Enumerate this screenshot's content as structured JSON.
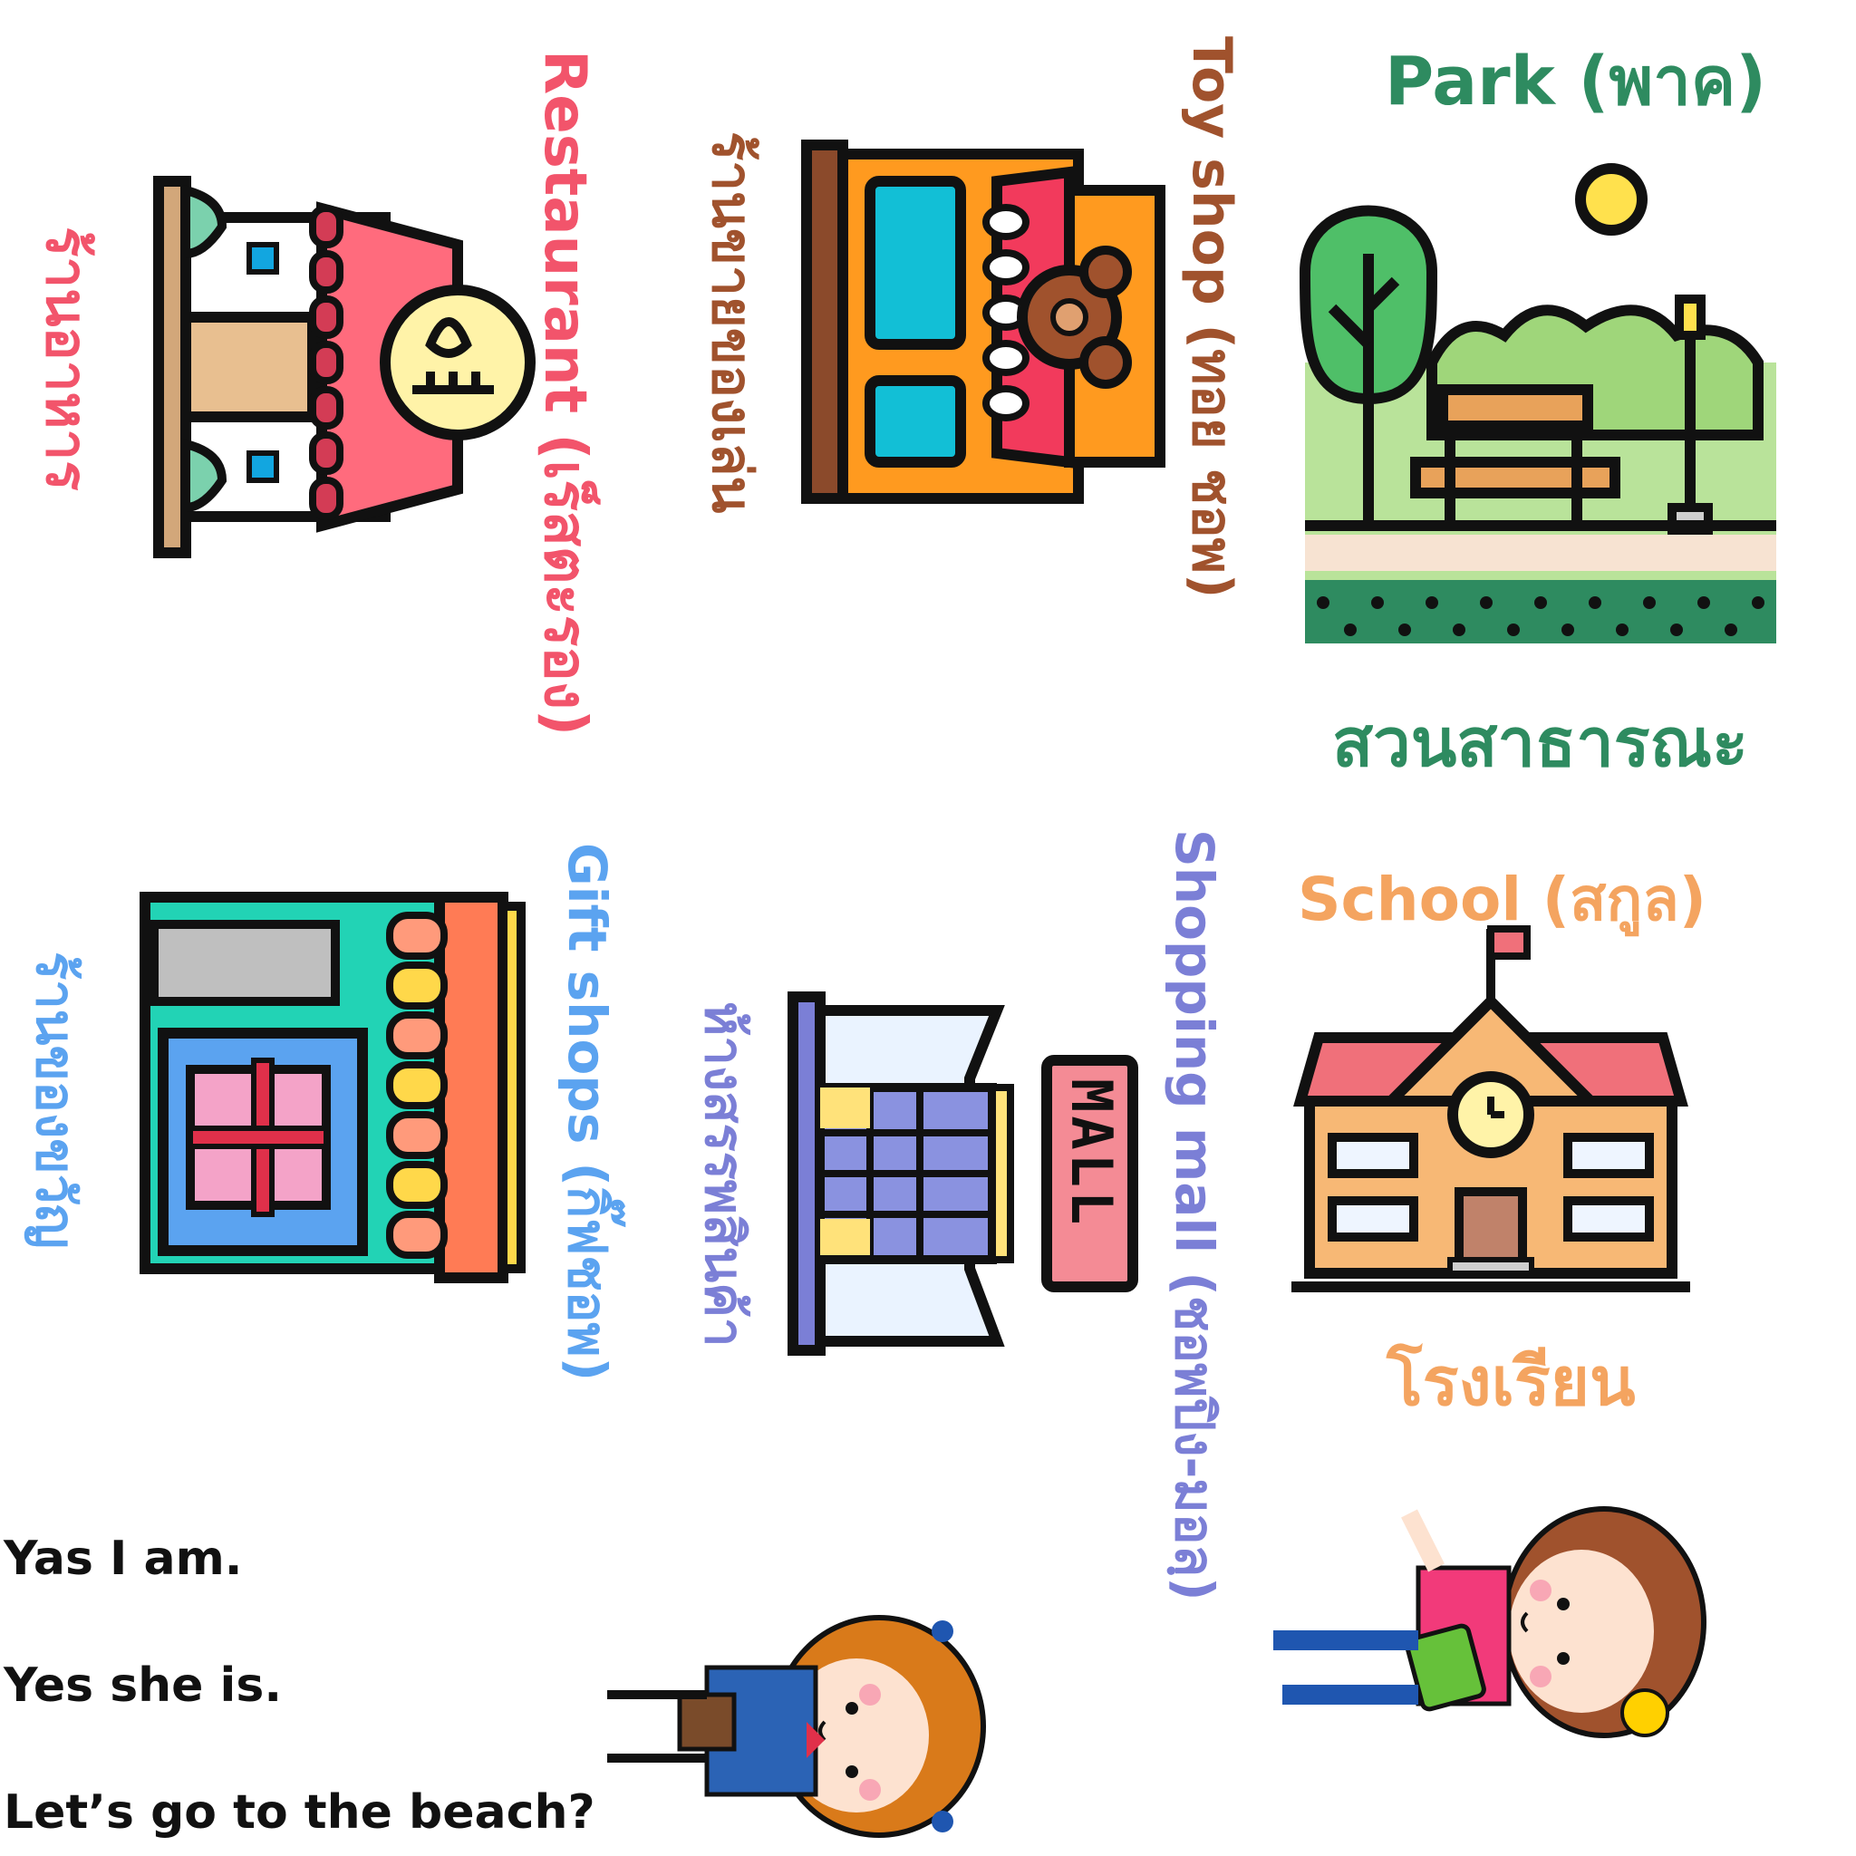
{
  "colors": {
    "park": "#2e8b60",
    "toy": "#a0522d",
    "restaurant": "#f2546b",
    "school": "#f4a460",
    "mall": "#7b7fd6",
    "gift": "#5ba3f0"
  },
  "park": {
    "english": "Park (พาค)",
    "thai": "สวนสาธารณะ",
    "icon": "park-icon"
  },
  "toy_shop": {
    "english": "Toy shop (ทอย ชอพ)",
    "thai": "ร้านขายของเล่น",
    "icon": "toy-shop-icon"
  },
  "restaurant": {
    "english": "Restaurant (เร็สตะรอง)",
    "thai": "ร้านอาหาร",
    "icon": "restaurant-icon"
  },
  "school": {
    "english": "School (สกูล)",
    "thai": "โรงเรียน",
    "icon": "school-icon"
  },
  "mall": {
    "english": "Shopping mall (ชอพปิง-มอลฺ)",
    "thai": "ห้างสรรพสินค้า",
    "sign": "MALL",
    "icon": "mall-icon"
  },
  "gift_shop": {
    "english": "Gift shops (กิ๊ฟชอพ)",
    "thai": "ร้านของขวัญ",
    "icon": "gift-shop-icon"
  },
  "dialogue": [
    "Yas I am.",
    "Yes she is.",
    "Let’s go to the beach?"
  ]
}
